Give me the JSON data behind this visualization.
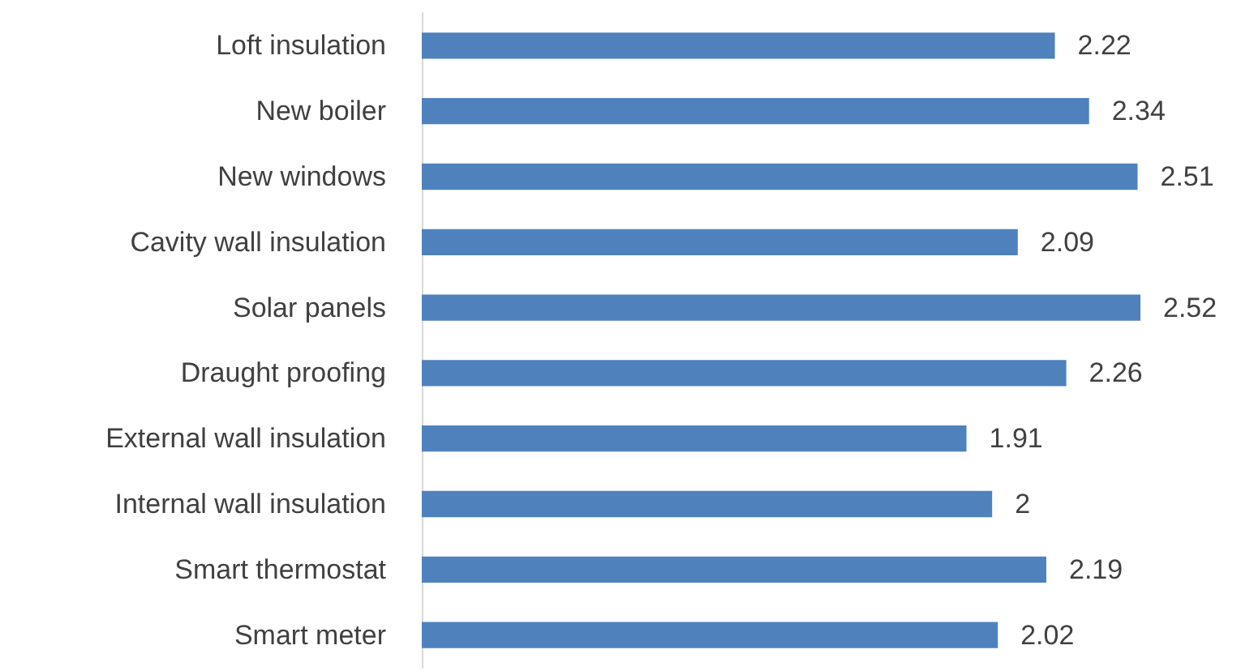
{
  "chart_data": {
    "type": "bar",
    "orientation": "horizontal",
    "categories": [
      "Loft insulation",
      "New boiler",
      "New windows",
      "Cavity wall insulation",
      "Solar panels",
      "Draught proofing",
      "External wall insulation",
      "Internal wall insulation",
      "Smart thermostat",
      "Smart meter"
    ],
    "values": [
      2.22,
      2.34,
      2.51,
      2.09,
      2.52,
      2.26,
      1.91,
      2,
      2.19,
      2.02
    ],
    "color": "#4f81bd",
    "data_labels": true
  }
}
